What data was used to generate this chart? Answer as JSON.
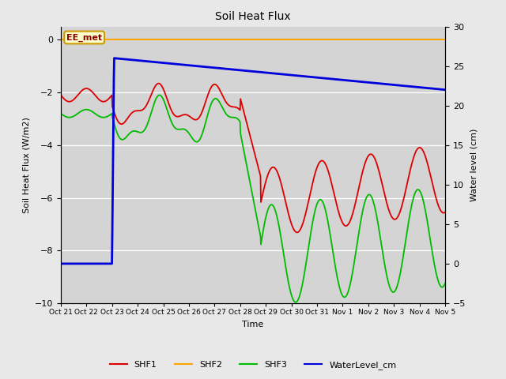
{
  "title": "Soil Heat Flux",
  "ylabel_left": "Soil Heat Flux (W/m2)",
  "ylabel_right": "Water level (cm)",
  "xlabel": "Time",
  "ylim_left": [
    -10.0,
    0.5
  ],
  "ylim_right": [
    -5,
    30
  ],
  "fig_bg_color": "#e8e8e8",
  "plot_bg_color": "#d4d4d4",
  "grid_color": "#ffffff",
  "annotation_text": "EE_met",
  "annotation_color": "#8B0000",
  "annotation_bg": "#ffffcc",
  "annotation_border": "#cc9900",
  "x_tick_labels": [
    "Oct 21",
    "Oct 22",
    "Oct 23",
    "Oct 24",
    "Oct 25",
    "Oct 26",
    "Oct 27",
    "Oct 28",
    "Oct 29",
    "Oct 30",
    "Oct 31",
    "Nov 1",
    "Nov 2",
    "Nov 3",
    "Nov 4",
    "Nov 5"
  ],
  "shf1_color": "#dd0000",
  "shf2_color": "#ffa500",
  "shf3_color": "#00bb00",
  "water_color": "#0000dd",
  "legend_labels": [
    "SHF1",
    "SHF2",
    "SHF3",
    "WaterLevel_cm"
  ],
  "n_days": 15
}
